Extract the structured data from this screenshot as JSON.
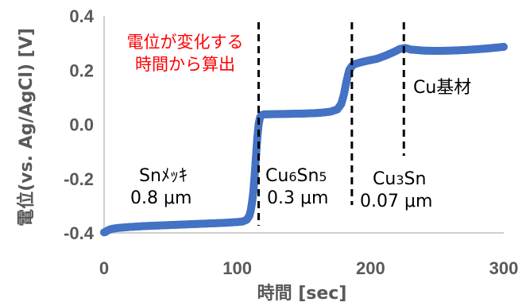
{
  "chart_data": {
    "type": "scatter",
    "xlabel": "時間 [sec]",
    "ylabel": "電位(vs. Ag/AgCl) [V]",
    "xlim": [
      0,
      300
    ],
    "ylim": [
      -0.4,
      0.4
    ],
    "xticks": [
      {
        "value": 0,
        "label": "0"
      },
      {
        "value": 100,
        "label": "100"
      },
      {
        "value": 200,
        "label": "200"
      },
      {
        "value": 300,
        "label": "300"
      }
    ],
    "yticks": [
      {
        "value": 0.4,
        "label": "0.4"
      },
      {
        "value": 0.2,
        "label": "0.2"
      },
      {
        "value": 0.0,
        "label": "0.0"
      },
      {
        "value": -0.2,
        "label": "-0.2"
      },
      {
        "value": -0.4,
        "label": "-0.4"
      }
    ],
    "grid": false,
    "series_color": "#4472c4",
    "points": [
      [
        0,
        -0.398
      ],
      [
        1,
        -0.397
      ],
      [
        2,
        -0.393
      ],
      [
        4,
        -0.388
      ],
      [
        6,
        -0.385
      ],
      [
        10,
        -0.382
      ],
      [
        20,
        -0.378
      ],
      [
        30,
        -0.375
      ],
      [
        40,
        -0.373
      ],
      [
        50,
        -0.371
      ],
      [
        60,
        -0.369
      ],
      [
        70,
        -0.367
      ],
      [
        80,
        -0.365
      ],
      [
        90,
        -0.363
      ],
      [
        100,
        -0.36
      ],
      [
        104,
        -0.358
      ],
      [
        107,
        -0.352
      ],
      [
        109,
        -0.338
      ],
      [
        110,
        -0.32
      ],
      [
        111,
        -0.29
      ],
      [
        112,
        -0.25
      ],
      [
        113,
        -0.19
      ],
      [
        114,
        -0.12
      ],
      [
        115,
        -0.05
      ],
      [
        116,
        0.0
      ],
      [
        117,
        0.025
      ],
      [
        118,
        0.034
      ],
      [
        120,
        0.037
      ],
      [
        130,
        0.038
      ],
      [
        140,
        0.039
      ],
      [
        150,
        0.04
      ],
      [
        160,
        0.042
      ],
      [
        165,
        0.044
      ],
      [
        170,
        0.047
      ],
      [
        175,
        0.055
      ],
      [
        178,
        0.075
      ],
      [
        180,
        0.11
      ],
      [
        182,
        0.16
      ],
      [
        184,
        0.2
      ],
      [
        186,
        0.215
      ],
      [
        188,
        0.222
      ],
      [
        192,
        0.228
      ],
      [
        198,
        0.235
      ],
      [
        205,
        0.242
      ],
      [
        212,
        0.255
      ],
      [
        218,
        0.268
      ],
      [
        222,
        0.278
      ],
      [
        226,
        0.282
      ],
      [
        230,
        0.276
      ],
      [
        240,
        0.272
      ],
      [
        250,
        0.271
      ],
      [
        260,
        0.272
      ],
      [
        270,
        0.274
      ],
      [
        280,
        0.277
      ],
      [
        290,
        0.281
      ],
      [
        300,
        0.286
      ]
    ],
    "boundaries_x": [
      116,
      186,
      225
    ],
    "annotations": {
      "calc_line1": "電位が変化する",
      "calc_line2": "時間から算出",
      "sn_label": "Snﾒｯｷ",
      "sn_thickness": "0.8 μm",
      "cu6sn5_prefix": "Cu",
      "cu6sn5_sub1": "6",
      "cu6sn5_mid": "Sn",
      "cu6sn5_sub2": "5",
      "cu6sn5_thickness": "0.3 μm",
      "cu3sn_prefix": "Cu",
      "cu3sn_sub": "3",
      "cu3sn_suffix": "Sn",
      "cu3sn_thickness": "0.07 μm",
      "cu_base": "Cu基材"
    }
  }
}
